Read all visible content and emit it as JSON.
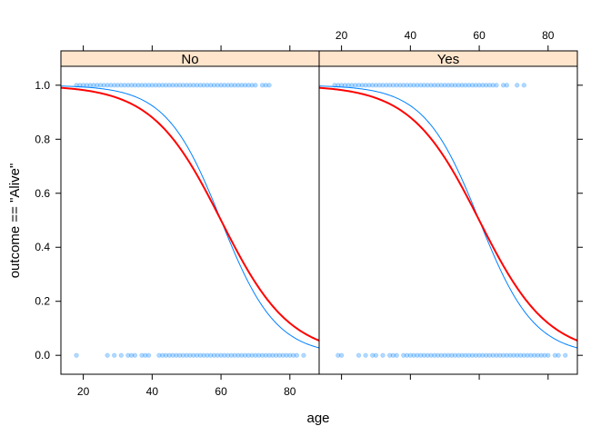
{
  "chart_data": {
    "type": "scatter",
    "xlabel": "age",
    "ylabel": "outcome == \"Alive\"",
    "xlim": [
      13.5,
      88.5
    ],
    "ylim": [
      -0.07,
      1.07
    ],
    "x_ticks": [
      20,
      40,
      60,
      80
    ],
    "y_ticks": [
      0.0,
      0.2,
      0.4,
      0.6,
      0.8,
      1.0
    ],
    "y_tick_labels": [
      "0.0",
      "0.2",
      "0.4",
      "0.6",
      "0.8",
      "1.0"
    ],
    "colors": {
      "points": "#0080ff",
      "fit_thin": "#0080ff",
      "fit_thick": "#ff0000",
      "strip_bg": "#ffe5cc"
    },
    "panels": [
      {
        "strip": "No",
        "points_y1": [
          18,
          19,
          20,
          21,
          22,
          23,
          24,
          25,
          26,
          27,
          28,
          29,
          30,
          31,
          32,
          33,
          34,
          35,
          36,
          37,
          38,
          39,
          40,
          41,
          42,
          43,
          44,
          45,
          46,
          47,
          48,
          49,
          50,
          51,
          52,
          53,
          54,
          55,
          56,
          57,
          58,
          59,
          60,
          61,
          62,
          63,
          64,
          65,
          66,
          67,
          68,
          69,
          70,
          72,
          73,
          74
        ],
        "points_y0": [
          18,
          27,
          29,
          31,
          33,
          34,
          35,
          37,
          38,
          39,
          42,
          43,
          44,
          45,
          46,
          47,
          48,
          49,
          50,
          51,
          52,
          53,
          54,
          55,
          56,
          57,
          58,
          59,
          60,
          61,
          62,
          63,
          64,
          65,
          66,
          67,
          68,
          69,
          70,
          71,
          72,
          73,
          74,
          75,
          76,
          77,
          78,
          79,
          80,
          81,
          82,
          84
        ],
        "fit_thin": {
          "intercept": 7.5,
          "slope": -0.125
        },
        "fit_thick": {
          "intercept": 6.0,
          "slope": -0.1
        }
      },
      {
        "strip": "Yes",
        "points_y1": [
          18,
          19,
          20,
          21,
          22,
          23,
          24,
          25,
          26,
          27,
          28,
          29,
          30,
          31,
          32,
          33,
          34,
          35,
          36,
          37,
          38,
          39,
          40,
          41,
          42,
          43,
          44,
          45,
          46,
          47,
          48,
          49,
          50,
          51,
          52,
          53,
          54,
          55,
          56,
          57,
          58,
          59,
          60,
          61,
          62,
          63,
          64,
          65,
          67,
          68,
          71,
          73
        ],
        "points_y0": [
          19,
          20,
          25,
          27,
          29,
          30,
          32,
          34,
          35,
          36,
          38,
          39,
          40,
          41,
          42,
          43,
          44,
          45,
          46,
          47,
          48,
          49,
          50,
          51,
          52,
          53,
          54,
          55,
          56,
          57,
          58,
          59,
          60,
          61,
          62,
          63,
          64,
          65,
          66,
          67,
          68,
          69,
          70,
          71,
          72,
          73,
          74,
          75,
          76,
          77,
          78,
          79,
          80,
          82,
          83,
          85
        ],
        "fit_thin": {
          "intercept": 7.5,
          "slope": -0.125
        },
        "fit_thick": {
          "intercept": 6.0,
          "slope": -0.1
        }
      }
    ]
  }
}
